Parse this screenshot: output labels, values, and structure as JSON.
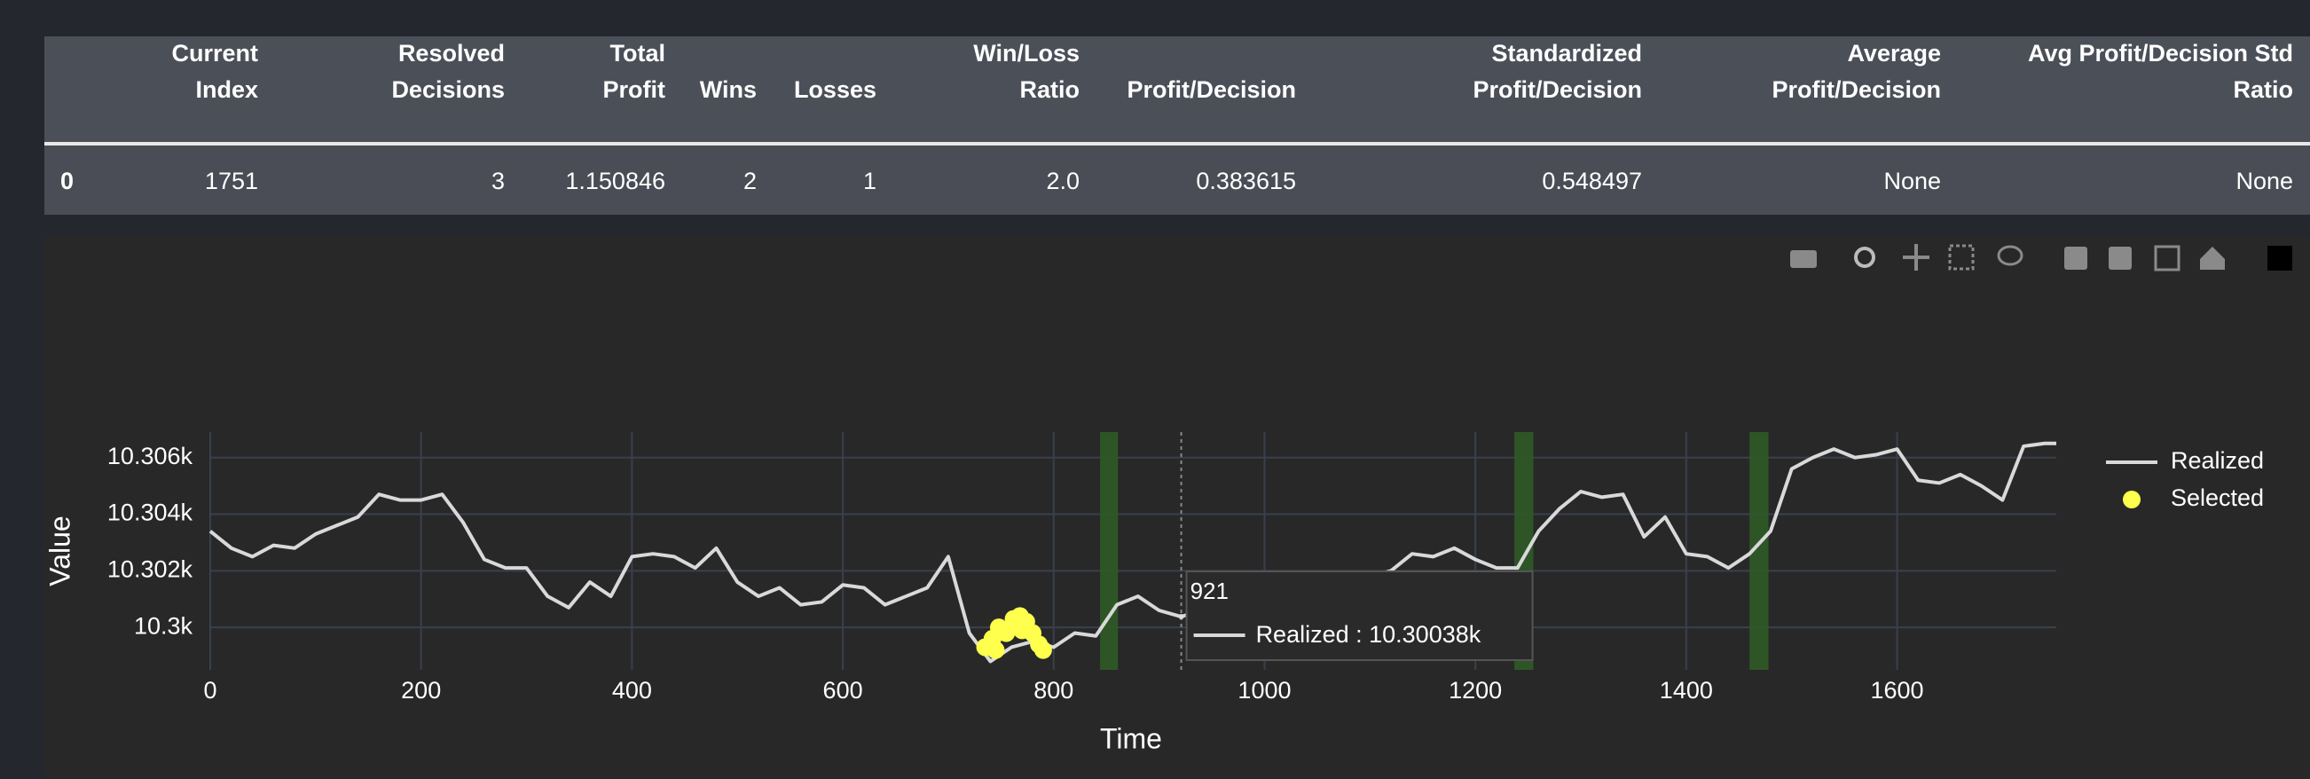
{
  "table": {
    "columns": [
      [
        "Current",
        "Index"
      ],
      [
        "Resolved",
        "Decisions"
      ],
      [
        "Total",
        "Profit"
      ],
      [
        "Wins"
      ],
      [
        "Losses"
      ],
      [
        "Win/Loss",
        "Ratio"
      ],
      [
        "Profit/Decision"
      ],
      [
        "Standardized",
        "Profit/Decision"
      ],
      [
        "Average",
        "Profit/Decision"
      ],
      [
        "Avg Profit/Decision Std",
        "Ratio"
      ]
    ],
    "rows": [
      {
        "index": "0",
        "cells": [
          "1751",
          "3",
          "1.150846",
          "2",
          "1",
          "2.0",
          "0.383615",
          "0.548497",
          "None",
          "None"
        ]
      }
    ]
  },
  "chart_data": {
    "type": "line",
    "x_label": "Time",
    "y_label": "Value",
    "xlim": [
      0,
      1751
    ],
    "ylim": [
      10298.5,
      10306.9
    ],
    "xticks": [
      0,
      200,
      400,
      600,
      800,
      1000,
      1200,
      1400,
      1600
    ],
    "yticks": [
      {
        "value": 10300,
        "label": "10.3k"
      },
      {
        "value": 10302,
        "label": "10.302k"
      },
      {
        "value": 10304,
        "label": "10.304k"
      },
      {
        "value": 10306,
        "label": "10.306k"
      }
    ],
    "grid": true,
    "legend_position": "right",
    "series": [
      {
        "name": "Realized",
        "color": "#d9d9d9",
        "x": [
          0,
          20,
          40,
          60,
          80,
          100,
          120,
          140,
          160,
          180,
          200,
          220,
          240,
          260,
          280,
          300,
          320,
          340,
          360,
          380,
          400,
          420,
          440,
          460,
          480,
          500,
          520,
          540,
          560,
          580,
          600,
          620,
          640,
          660,
          680,
          700,
          720,
          740,
          760,
          780,
          800,
          820,
          840,
          860,
          880,
          900,
          921,
          940,
          960,
          980,
          1000,
          1020,
          1040,
          1060,
          1080,
          1100,
          1120,
          1140,
          1160,
          1180,
          1200,
          1220,
          1240,
          1260,
          1280,
          1300,
          1320,
          1340,
          1360,
          1380,
          1400,
          1420,
          1440,
          1460,
          1480,
          1500,
          1520,
          1540,
          1560,
          1580,
          1600,
          1620,
          1640,
          1660,
          1680,
          1700,
          1720,
          1740,
          1751
        ],
        "values": [
          10303.4,
          10302.8,
          10302.5,
          10302.9,
          10302.8,
          10303.3,
          10303.6,
          10303.9,
          10304.7,
          10304.5,
          10304.5,
          10304.7,
          10303.7,
          10302.4,
          10302.1,
          10302.1,
          10301.1,
          10300.7,
          10301.6,
          10301.1,
          10302.5,
          10302.6,
          10302.5,
          10302.1,
          10302.8,
          10301.6,
          10301.1,
          10301.4,
          10300.8,
          10300.9,
          10301.5,
          10301.4,
          10300.8,
          10301.1,
          10301.4,
          10302.5,
          10299.8,
          10298.8,
          10299.3,
          10299.5,
          10299.3,
          10299.8,
          10299.7,
          10300.8,
          10301.1,
          10300.6,
          10300.38,
          10300.6,
          10301.0,
          10300.7,
          10301.2,
          10300.9,
          10301.3,
          10301.5,
          10301.2,
          10301.8,
          10302.0,
          10302.6,
          10302.5,
          10302.8,
          10302.4,
          10302.1,
          10302.1,
          10303.4,
          10304.2,
          10304.8,
          10304.6,
          10304.7,
          10303.2,
          10303.9,
          10302.6,
          10302.5,
          10302.1,
          10302.6,
          10303.4,
          10305.6,
          10306.0,
          10306.3,
          10306.0,
          10306.1,
          10306.3,
          10305.2,
          10305.1,
          10305.4,
          10305.0,
          10304.5,
          10306.4,
          10306.5,
          10306.5
        ]
      },
      {
        "name": "Selected",
        "color": "#ffff4d",
        "mode": "markers",
        "x": [
          735,
          742,
          745,
          748,
          755,
          762,
          768,
          770,
          774,
          780,
          786,
          790
        ],
        "values": [
          10299.3,
          10299.6,
          10299.2,
          10300.0,
          10299.8,
          10300.3,
          10300.4,
          10299.9,
          10300.2,
          10299.8,
          10299.4,
          10299.2
        ]
      }
    ],
    "regions": [
      {
        "start": 844,
        "end": 861,
        "color": "#2f5a26"
      },
      {
        "start": 1237,
        "end": 1255,
        "color": "#2f5a26"
      },
      {
        "start": 1460,
        "end": 1478,
        "color": "#2f5a26"
      }
    ],
    "tooltip": {
      "x": 921,
      "x_label": "921",
      "value": 10300.38,
      "text": "Realized : 10.30038k"
    }
  }
}
